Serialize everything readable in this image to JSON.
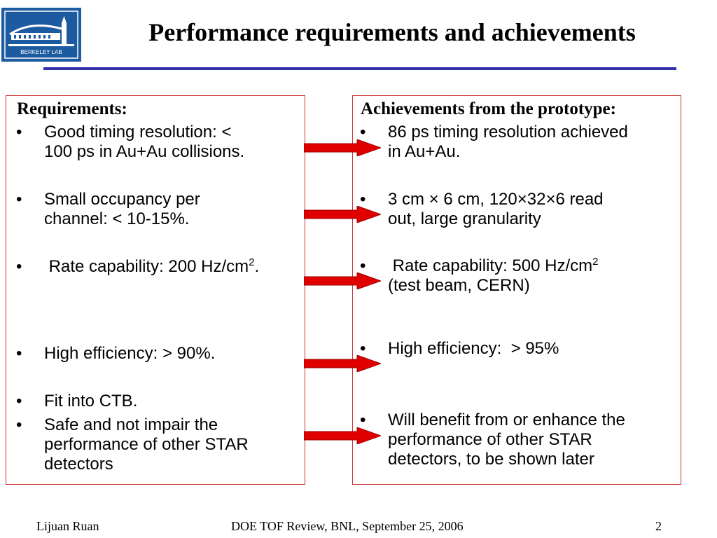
{
  "logo": {
    "text": "BERKELEY LAB"
  },
  "title": "Performance requirements and achievements",
  "colors": {
    "rule": "#3030a8",
    "box_border": "#cc3333",
    "arrow": "#e00000",
    "logo_bg": "#1c5b9f"
  },
  "requirements": {
    "heading": "Requirements:",
    "items": [
      {
        "line1": "Good timing resolution: <",
        "line2": "100 ps in Au+Au collisions."
      },
      {
        "line1": "Small occupancy per",
        "line2": "channel: < 10-15%."
      },
      {
        "line1": " Rate capability: 200 Hz/cm",
        "sup": "2",
        "tail": "."
      },
      {
        "line1": "High efficiency: > 90%."
      },
      {
        "line1": "Fit into CTB."
      },
      {
        "line1": "Safe and not impair the",
        "line2": "performance of other STAR",
        "line3": "detectors"
      }
    ]
  },
  "achievements": {
    "heading": "Achievements from the prototype:",
    "items": [
      {
        "line1": "86 ps timing resolution achieved",
        "line2": "in Au+Au."
      },
      {
        "line1": "3 cm × 6 cm, 120×32×6 read",
        "line2": "out, large granularity"
      },
      {
        "line1": " Rate capability: 500 Hz/cm",
        "sup": "2",
        "line2": "(test beam, CERN)"
      },
      {
        "line1": "High efficiency:  > 95%"
      },
      {
        "line1": "Will benefit from or enhance the",
        "line2": "performance of other STAR",
        "line3": "detectors, to be shown later"
      }
    ]
  },
  "bullet_char": "•",
  "footer": {
    "author": "Lijuan Ruan",
    "event": "DOE TOF Review, BNL, September 25, 2006",
    "page": "2"
  }
}
